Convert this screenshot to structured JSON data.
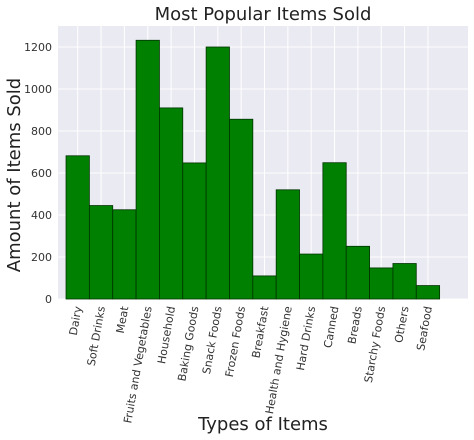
{
  "chart_data": {
    "type": "bar",
    "title": "Most Popular Items Sold",
    "xlabel": "Types of Items",
    "ylabel": "Amount of Items Sold",
    "categories": [
      "Dairy",
      "Soft Drinks",
      "Meat",
      "Fruits and Vegetables",
      "Household",
      "Baking Goods",
      "Snack Foods",
      "Frozen Foods",
      "Breakfast",
      "Health and Hygiene",
      "Hard Drinks",
      "Canned",
      "Breads",
      "Starchy Foods",
      "Others",
      "Seafood"
    ],
    "values": [
      682,
      445,
      425,
      1232,
      910,
      648,
      1200,
      856,
      110,
      520,
      214,
      649,
      251,
      148,
      169,
      64
    ],
    "ylim": [
      0,
      1300
    ],
    "yticks": [
      0,
      200,
      400,
      600,
      800,
      1000,
      1200
    ],
    "grid": true,
    "colors": {
      "bar": "#008000",
      "bar_edge": "#003300",
      "plot_bg": "#eaeaf2",
      "grid": "#ffffff"
    }
  }
}
